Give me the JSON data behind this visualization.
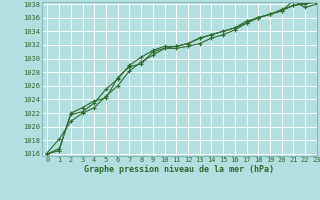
{
  "title": "Graphe pression niveau de la mer (hPa)",
  "background_color": "#b2e0e0",
  "grid_color": "#ffffff",
  "line_color": "#2d6a2d",
  "xlim": [
    -0.5,
    23
  ],
  "ylim": [
    1016,
    1038
  ],
  "yticks": [
    1016,
    1018,
    1020,
    1022,
    1024,
    1026,
    1028,
    1030,
    1032,
    1034,
    1036,
    1038
  ],
  "xticks": [
    0,
    1,
    2,
    3,
    4,
    5,
    6,
    7,
    8,
    9,
    10,
    11,
    12,
    13,
    14,
    15,
    16,
    17,
    18,
    19,
    20,
    21,
    22,
    23
  ],
  "series1": [
    1016.2,
    1018.2,
    1020.8,
    1022.0,
    1022.8,
    1024.5,
    1026.0,
    1028.2,
    1029.5,
    1030.5,
    1031.5,
    1031.5,
    1031.8,
    1032.2,
    1033.0,
    1033.5,
    1034.2,
    1035.2,
    1036.0,
    1036.5,
    1037.0,
    1038.5,
    1037.5,
    1038.0
  ],
  "series2": [
    1016.0,
    1016.8,
    1021.8,
    1022.2,
    1023.5,
    1025.5,
    1027.0,
    1029.0,
    1030.2,
    1031.2,
    1031.8,
    1031.8,
    1032.2,
    1033.0,
    1033.5,
    1034.0,
    1034.5,
    1035.2,
    1036.0,
    1036.5,
    1037.2,
    1037.8,
    1038.2,
    1038.2
  ],
  "series3": [
    1016.0,
    1016.5,
    1022.0,
    1022.8,
    1023.8,
    1024.2,
    1027.2,
    1028.8,
    1029.2,
    1031.0,
    1031.5,
    1031.8,
    1032.2,
    1033.0,
    1033.5,
    1034.0,
    1034.5,
    1035.5,
    1036.0,
    1036.5,
    1037.0,
    1037.8,
    1038.0,
    1038.3
  ],
  "tick_fontsize": 5.0,
  "label_fontsize": 6.0,
  "spine_color": "#8ababa"
}
